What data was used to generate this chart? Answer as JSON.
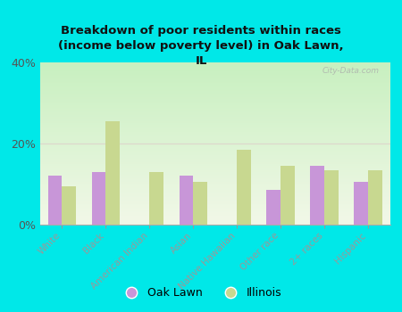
{
  "title": "Breakdown of poor residents within races\n(income below poverty level) in Oak Lawn,\nIL",
  "categories": [
    "White",
    "Black",
    "American Indian",
    "Asian",
    "Native Hawaiian",
    "Other race",
    "2+ races",
    "Hispanic"
  ],
  "oak_lawn": [
    12.0,
    13.0,
    0.0,
    12.0,
    0.0,
    8.5,
    14.5,
    10.5
  ],
  "illinois": [
    9.5,
    25.5,
    13.0,
    10.5,
    18.5,
    14.5,
    13.5,
    13.5
  ],
  "oak_lawn_color": "#c896d8",
  "illinois_color": "#c8d890",
  "background_top": "#c8f0c0",
  "background_bottom": "#f2f8e8",
  "figure_bg": "#00e8e8",
  "ylim": [
    0,
    40
  ],
  "yticks": [
    0,
    20,
    40
  ],
  "ytick_labels": [
    "0%",
    "20%",
    "40%"
  ],
  "watermark": "City-Data.com",
  "bar_width": 0.32,
  "grid_color": "#ddd8cc",
  "title_color": "#111111",
  "tick_color": "#555555"
}
